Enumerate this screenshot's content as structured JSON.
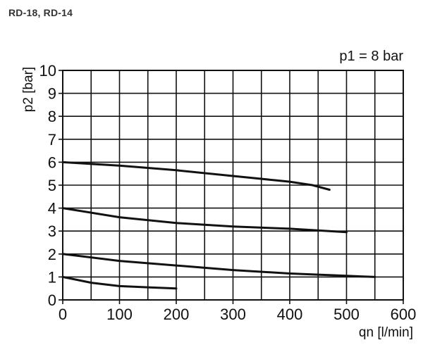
{
  "page": {
    "heading": "RD-18, RD-14"
  },
  "chart_data": {
    "type": "line",
    "title": "",
    "annotation": "p1 = 8 bar",
    "xlabel": "qn [l/min]",
    "ylabel": "p2 [bar]",
    "xlim": [
      0,
      600
    ],
    "ylim": [
      0,
      10
    ],
    "x_ticks": [
      0,
      100,
      200,
      300,
      400,
      500,
      600
    ],
    "y_ticks": [
      0,
      1,
      2,
      3,
      4,
      5,
      6,
      7,
      8,
      9,
      10
    ],
    "x_grid_step": 50,
    "y_grid_step": 1,
    "grid": true,
    "line_color": "#111111",
    "series": [
      {
        "x": [
          0,
          100,
          200,
          300,
          400,
          440,
          470
        ],
        "y": [
          6.0,
          5.85,
          5.65,
          5.4,
          5.15,
          5.0,
          4.8
        ]
      },
      {
        "x": [
          0,
          100,
          200,
          300,
          400,
          500
        ],
        "y": [
          4.0,
          3.6,
          3.35,
          3.2,
          3.1,
          2.95
        ]
      },
      {
        "x": [
          0,
          100,
          200,
          300,
          400,
          500,
          550
        ],
        "y": [
          2.0,
          1.7,
          1.5,
          1.3,
          1.15,
          1.05,
          1.0
        ]
      },
      {
        "x": [
          0,
          50,
          100,
          150,
          200
        ],
        "y": [
          1.0,
          0.75,
          0.6,
          0.55,
          0.5
        ]
      }
    ]
  }
}
